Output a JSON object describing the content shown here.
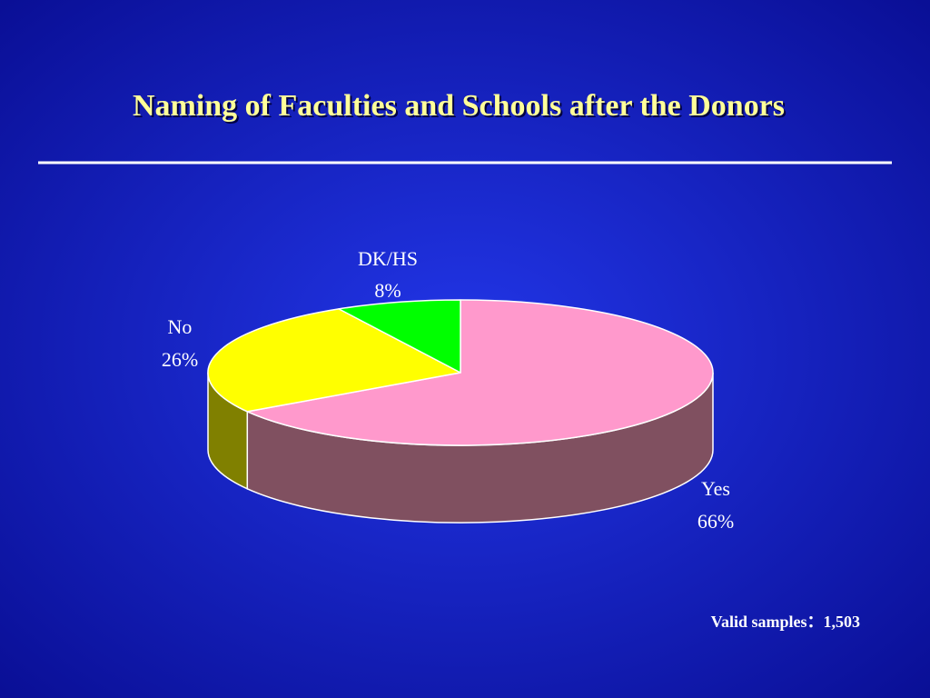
{
  "chart_data": {
    "type": "pie",
    "title": "Naming of Faculties and Schools after the Donors",
    "categories": [
      "Yes",
      "No",
      "DK/HS"
    ],
    "values": [
      66,
      26,
      8
    ],
    "value_labels": [
      "66%",
      "26%",
      "8%"
    ],
    "colors": [
      "#ff99cc",
      "#ffff00",
      "#00ff00"
    ],
    "side_colors": [
      "#805060",
      "#808000",
      "#008000"
    ],
    "annotation": "Valid samples：1,503"
  }
}
